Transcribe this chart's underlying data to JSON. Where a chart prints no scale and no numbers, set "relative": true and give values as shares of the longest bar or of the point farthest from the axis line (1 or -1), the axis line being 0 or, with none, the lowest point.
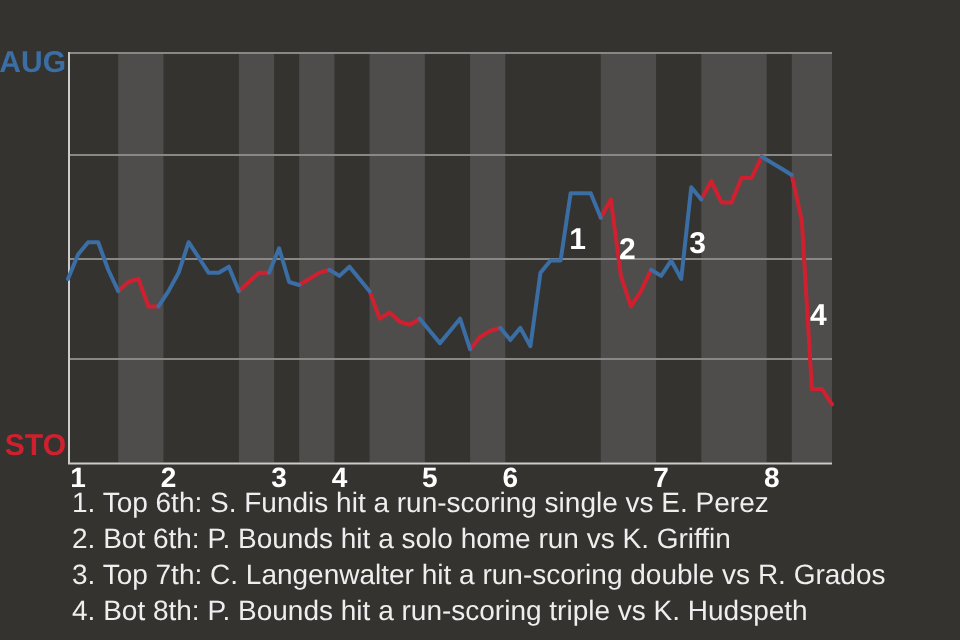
{
  "chart_data": {
    "type": "line",
    "relative": true,
    "categories": [
      null,
      "1",
      null,
      null,
      null,
      null,
      null,
      null,
      null,
      null,
      "2",
      null,
      null,
      null,
      null,
      null,
      null,
      null,
      null,
      null,
      null,
      "3",
      null,
      null,
      null,
      null,
      null,
      "4",
      null,
      null,
      null,
      null,
      null,
      null,
      null,
      null,
      "5",
      null,
      null,
      null,
      null,
      null,
      null,
      null,
      "6",
      null,
      null,
      null,
      null,
      null,
      null,
      null,
      null,
      null,
      null,
      null,
      null,
      null,
      null,
      "7",
      null,
      null,
      null,
      null,
      null,
      null,
      null,
      null,
      null,
      null,
      "8",
      null,
      null,
      null,
      null,
      null,
      null
    ],
    "legend": false,
    "marker": "none",
    "line_style": "solid",
    "series": [
      {
        "type": "line",
        "name": "AUG",
        "color": "#3a6ea5",
        "values": [
          0.6,
          0.68,
          0.72,
          0.72,
          0.63,
          0.56,
          null,
          null,
          null,
          0.51,
          0.56,
          0.62,
          0.72,
          0.67,
          0.62,
          0.62,
          0.64,
          0.56,
          null,
          null,
          0.62,
          0.7,
          0.59,
          0.58,
          null,
          null,
          0.63,
          0.61,
          0.64,
          0.6,
          0.56,
          null,
          null,
          null,
          null,
          0.47,
          0.43,
          0.39,
          0.43,
          0.47,
          0.37,
          null,
          null,
          0.44,
          0.4,
          0.44,
          0.38,
          0.62,
          0.66,
          0.66,
          0.88,
          0.88,
          0.88,
          0.8,
          null,
          null,
          null,
          null,
          0.63,
          0.61,
          0.66,
          0.6,
          0.9,
          0.86,
          null,
          null,
          null,
          null,
          null,
          1,
          0.98,
          0.96,
          0.94,
          null,
          null,
          null,
          null
        ]
      },
      {
        "type": "line",
        "name": "STO",
        "color": "#d0202f",
        "values": [
          null,
          null,
          null,
          null,
          null,
          0.56,
          0.59,
          0.6,
          0.51,
          0.51,
          null,
          null,
          null,
          null,
          null,
          null,
          null,
          0.56,
          0.59,
          0.62,
          0.62,
          null,
          null,
          0.58,
          0.6,
          0.62,
          0.63,
          null,
          null,
          null,
          0.56,
          0.47,
          0.49,
          0.46,
          0.45,
          0.47,
          null,
          null,
          null,
          null,
          0.37,
          0.41,
          0.43,
          0.44,
          null,
          null,
          null,
          null,
          null,
          null,
          null,
          null,
          null,
          0.8,
          0.86,
          0.61,
          0.51,
          0.56,
          0.63,
          null,
          null,
          null,
          null,
          0.86,
          0.92,
          0.85,
          0.85,
          0.93,
          0.93,
          1,
          null,
          null,
          0.94,
          0.79,
          0.24,
          0.24,
          0.19
        ]
      }
    ],
    "ref_lines": [
      {
        "axis": "y",
        "value": 0.34,
        "color": "#8a8886"
      },
      {
        "axis": "y",
        "value": 0.67,
        "color": "#8a8886"
      },
      {
        "axis": "y",
        "value": 1.01,
        "color": "#8a8886"
      }
    ],
    "annotations": [
      "1",
      "2",
      "3",
      "4",
      "1. Top 6th: S. Fundis hit a run-scoring single vs E. Perez",
      "2. Bot 6th: P. Bounds hit a solo home run vs K. Griffin",
      "3. Top 7th: C. Langenwalter hit a run-scoring double vs R. Grados",
      "4. Bot 8th: P. Bounds hit a run-scoring triple vs K. Hudspeth"
    ]
  }
}
